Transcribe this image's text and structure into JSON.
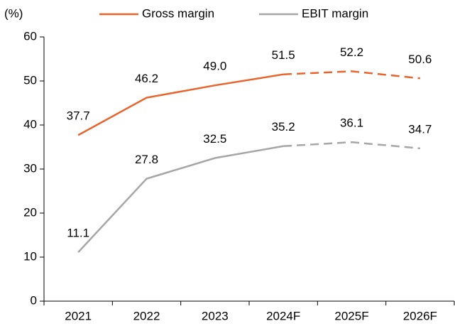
{
  "chart_data": {
    "type": "line",
    "y_unit_label": "(%)",
    "categories": [
      "2021",
      "2022",
      "2023",
      "2024F",
      "2025F",
      "2026F"
    ],
    "series": [
      {
        "name": "Gross margin",
        "color": "#e8642c",
        "values": [
          37.7,
          46.2,
          49.0,
          51.5,
          52.2,
          50.6
        ],
        "value_labels": [
          "37.7",
          "46.2",
          "49.0",
          "51.5",
          "52.2",
          "50.6"
        ]
      },
      {
        "name": "EBIT margin",
        "color": "#a6a6a6",
        "values": [
          11.1,
          27.8,
          32.5,
          35.2,
          36.1,
          34.7
        ],
        "value_labels": [
          "11.1",
          "27.8",
          "32.5",
          "35.2",
          "36.1",
          "34.7"
        ]
      }
    ],
    "dashed_from_index": 3,
    "ylim": [
      0,
      60
    ],
    "yticks": [
      0,
      10,
      20,
      30,
      40,
      50,
      60
    ],
    "legend": "top",
    "grid": false
  }
}
